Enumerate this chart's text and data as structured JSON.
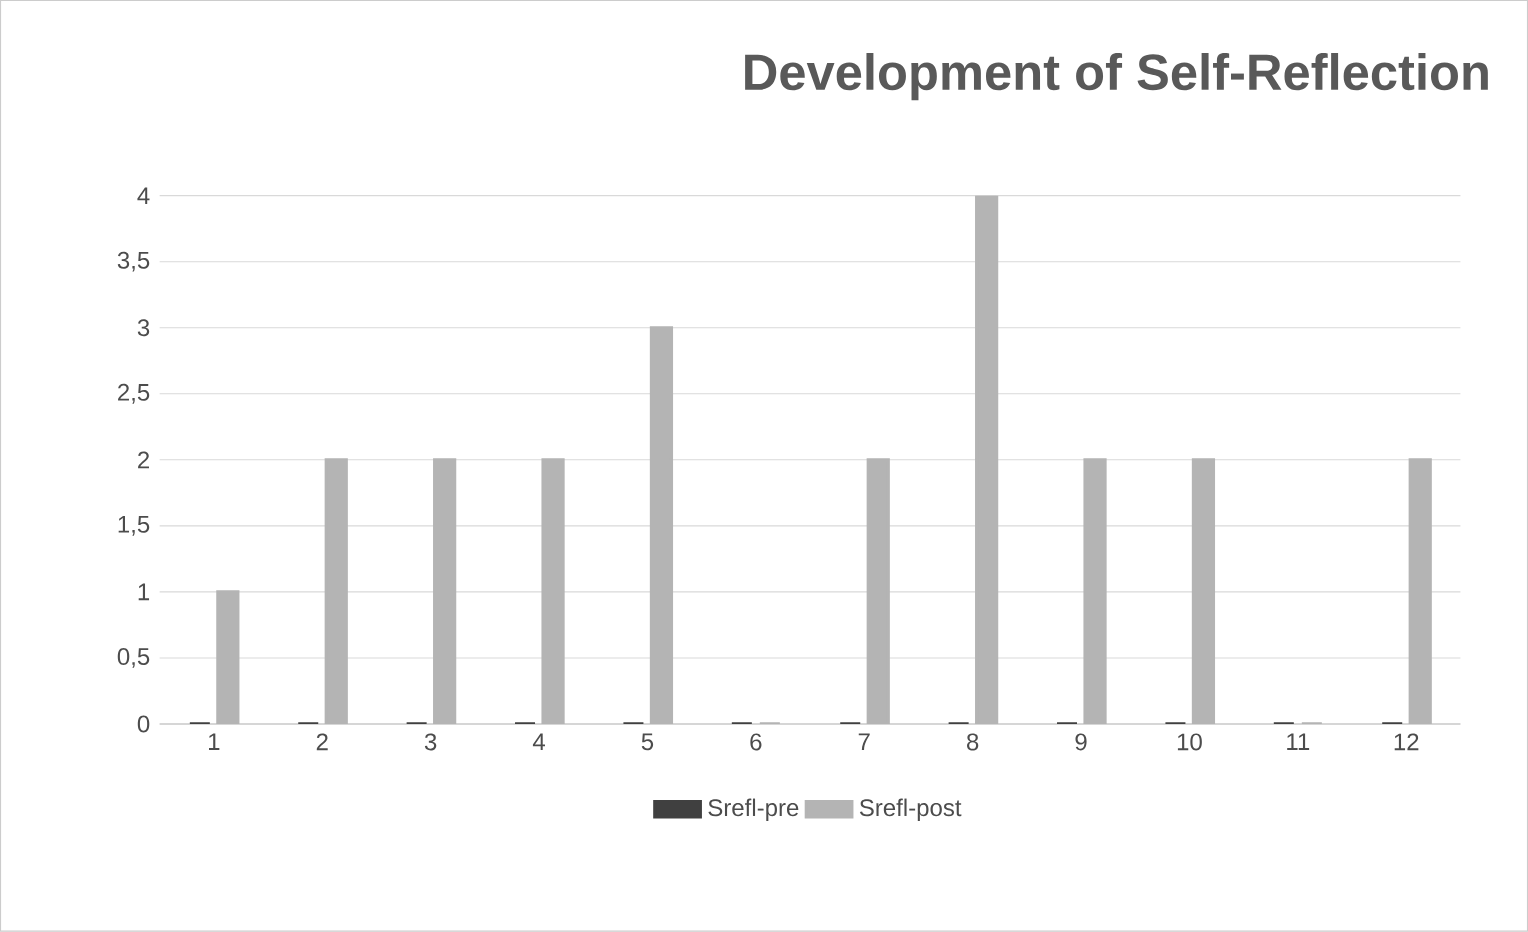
{
  "chart_data": {
    "type": "bar",
    "title": "Development of Self-Reflection",
    "categories": [
      "1",
      "2",
      "3",
      "4",
      "5",
      "6",
      "7",
      "8",
      "9",
      "10",
      "11",
      "12"
    ],
    "series": [
      {
        "name": "Srefl-pre",
        "color": "#404040",
        "values": [
          0,
          0,
          0,
          0,
          0,
          0,
          0,
          0,
          0,
          0,
          0,
          0
        ]
      },
      {
        "name": "Srefl-post",
        "color": "#b4b4b4",
        "values": [
          1,
          2,
          2,
          2,
          3,
          0,
          2,
          4,
          2,
          2,
          0,
          2
        ]
      }
    ],
    "ylim": [
      0,
      4
    ],
    "yticks": [
      0,
      {
        "value": 0.5,
        "label": "0,5"
      },
      1,
      {
        "value": 1.5,
        "label": "1,5"
      },
      2,
      {
        "value": 2.5,
        "label": "2,5"
      },
      3,
      {
        "value": 3.5,
        "label": "3,5"
      },
      4
    ],
    "grid": "y",
    "legend": "bottom"
  }
}
